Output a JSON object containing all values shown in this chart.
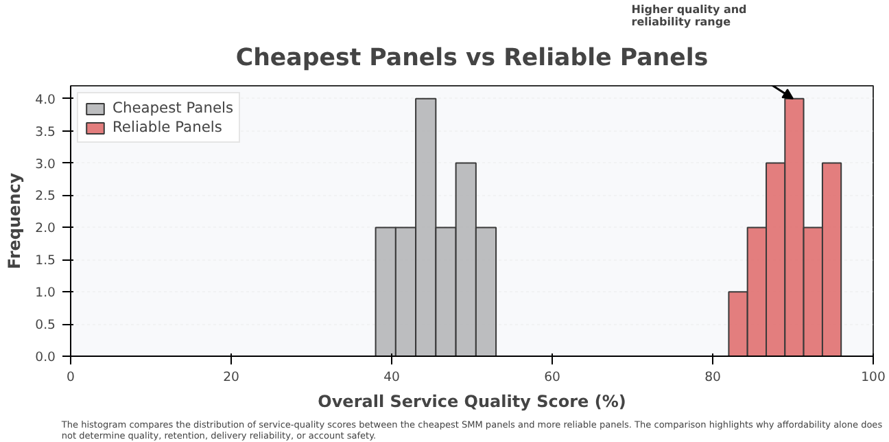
{
  "chart_data": {
    "type": "histogram",
    "title": "Cheapest Panels vs Reliable Panels",
    "xlabel": "Overall Service Quality Score (%)",
    "ylabel": "Frequency",
    "bins": [
      38,
      40.5,
      43,
      45.5,
      48,
      50.5,
      53,
      82,
      84.33,
      86.67,
      89,
      91.33,
      93.67,
      96
    ],
    "series": [
      {
        "name": "Cheapest Panels",
        "color": "#b5b6b8",
        "values": [
          2,
          2,
          4,
          2,
          3,
          2,
          null,
          null,
          null,
          null,
          null,
          null,
          null
        ]
      },
      {
        "name": "Reliable Panels",
        "color": "#e07070",
        "values": [
          null,
          null,
          null,
          null,
          null,
          null,
          null,
          1,
          2,
          3,
          4,
          2,
          3
        ]
      }
    ],
    "xlim": [
      0,
      100
    ],
    "xticks": [
      0,
      20,
      40,
      60,
      80,
      100
    ],
    "ylim": [
      0,
      4.2
    ],
    "yticks": [
      {
        "value": 0,
        "label": "0.0"
      },
      {
        "value": 0.5,
        "label": "0.5"
      },
      {
        "value": 1,
        "label": "1.0"
      },
      {
        "value": 1.5,
        "label": "1.5"
      },
      {
        "value": 2,
        "label": "2.0"
      },
      {
        "value": 2.5,
        "label": "2.5"
      },
      {
        "value": 3,
        "label": "3.0"
      },
      {
        "value": 3.5,
        "label": "3.5"
      },
      {
        "value": 4,
        "label": "4.0"
      }
    ],
    "grid": "y",
    "legend": "top left",
    "annotations": [
      {
        "text": "Higher quality and\nreliability range",
        "x": 90,
        "y": 4
      },
      "The histogram compares the distribution of service-quality scores between the cheapest SMM panels and more reliable panels. The comparison highlights why affordability alone does\nnot determine quality, retention, delivery reliability, or account safety."
    ]
  }
}
